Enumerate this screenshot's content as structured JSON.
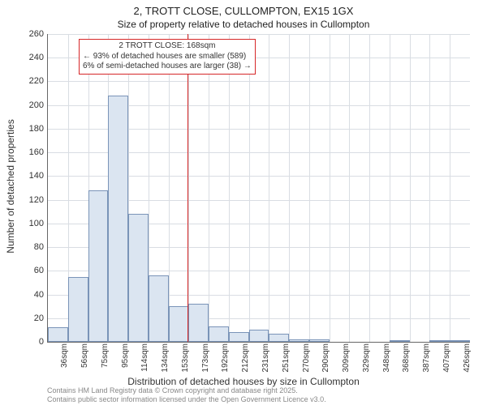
{
  "title": "2, TROTT CLOSE, CULLOMPTON, EX15 1GX",
  "subtitle": "Size of property relative to detached houses in Cullompton",
  "ylabel": "Number of detached properties",
  "xlabel": "Distribution of detached houses by size in Cullompton",
  "chart": {
    "type": "histogram",
    "background_color": "#ffffff",
    "grid_color": "#d9dde3",
    "axis_color": "#666666",
    "bar_fill": "#dbe5f1",
    "bar_border": "#7a94b8",
    "marker_color": "#d62728",
    "ylim": [
      0,
      260
    ],
    "ytick_step": 20,
    "yticks": [
      0,
      20,
      40,
      60,
      80,
      100,
      120,
      140,
      160,
      180,
      200,
      220,
      240,
      260
    ],
    "xticks": [
      "36sqm",
      "56sqm",
      "75sqm",
      "95sqm",
      "114sqm",
      "134sqm",
      "153sqm",
      "173sqm",
      "192sqm",
      "212sqm",
      "231sqm",
      "251sqm",
      "270sqm",
      "290sqm",
      "309sqm",
      "329sqm",
      "348sqm",
      "368sqm",
      "387sqm",
      "407sqm",
      "426sqm"
    ],
    "values": [
      12,
      55,
      128,
      208,
      108,
      56,
      30,
      32,
      13,
      8,
      10,
      7,
      2,
      2,
      0,
      0,
      0,
      1,
      0,
      1,
      1
    ],
    "marker_value": 168,
    "x_min": 36,
    "x_max": 436,
    "bar_width_ratio": 1.0
  },
  "annotation": {
    "lines": [
      "2 TROTT CLOSE: 168sqm",
      "← 93% of detached houses are smaller (589)",
      "6% of semi-detached houses are larger (38) →"
    ],
    "border_color": "#d62728",
    "bg_color": "#ffffff",
    "fontsize": 10
  },
  "footer": {
    "line1": "Contains HM Land Registry data © Crown copyright and database right 2025.",
    "line2": "Contains public sector information licensed under the Open Government Licence v3.0."
  },
  "fonts": {
    "title_fontsize": 13,
    "label_fontsize": 12,
    "tick_fontsize": 11,
    "footer_fontsize": 9
  }
}
